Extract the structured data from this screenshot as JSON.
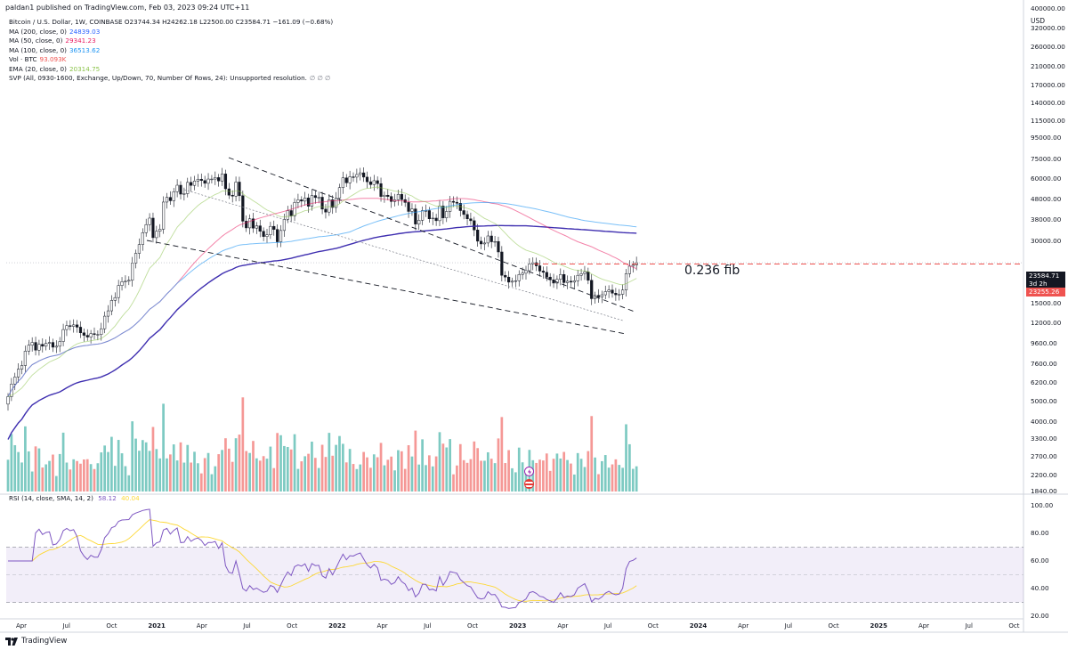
{
  "header": {
    "publish_line": "paldan1 published on TradingView.com, Feb 03, 2023 09:24 UTC+11"
  },
  "legend": {
    "title": "Bitcoin / U.S. Dollar, 1W, COINBASE",
    "ohlc": "O23744.34  H24262.18  L22500.00  C23584.71  −161.09 (−0.68%)",
    "indicators": [
      {
        "label": "MA (200, close, 0)",
        "value": "24839.03",
        "color": "#2962ff"
      },
      {
        "label": "MA (50, close, 0)",
        "value": "29341.23",
        "color": "#e91e63"
      },
      {
        "label": "MA (100, close, 0)",
        "value": "36513.62",
        "color": "#2196f3"
      },
      {
        "label": "Vol · BTC",
        "value": "93.093K",
        "color": "#ef5350"
      },
      {
        "label": "EMA (20, close, 0)",
        "value": "20314.75",
        "color": "#8bc34a"
      },
      {
        "label": "SVP (All, 0930-1600, Exchange, Up/Down, 70, Number Of Rows, 24): Unsupported resolution.",
        "value": "∅  ∅  ∅",
        "color": "#787b86"
      }
    ]
  },
  "rsi_legend": {
    "label": "RSI (14, close, SMA, 14, 2)",
    "value": "58.12",
    "value2": "40.04",
    "color": "#7e57c2",
    "color2": "#fdd835"
  },
  "price_axis": {
    "currency": "USD",
    "labels": [
      "400000.00",
      "320000.00",
      "260000.00",
      "210000.00",
      "170000.00",
      "140000.00",
      "115000.00",
      "95000.00",
      "75000.00",
      "60000.00",
      "48000.00",
      "38000.00",
      "30000.00",
      "19000.00",
      "15000.00",
      "12000.00",
      "9600.00",
      "7600.00",
      "6200.00",
      "5000.00",
      "4000.00",
      "3300.00",
      "2700.00",
      "2200.00",
      "1840.00"
    ],
    "current_price": "23584.71",
    "countdown": "3d 2h",
    "fib_price": "23255.26"
  },
  "rsi_axis": {
    "labels": [
      "100.00",
      "80.00",
      "60.00",
      "40.00",
      "20.00"
    ]
  },
  "time_axis": {
    "labels": [
      "Apr",
      "Jul",
      "Oct",
      "2021",
      "Apr",
      "Jul",
      "Oct",
      "2022",
      "Apr",
      "Jul",
      "Oct",
      "2023",
      "Apr",
      "Jul",
      "Oct",
      "2024",
      "Apr",
      "Jul",
      "Oct",
      "2025",
      "Apr",
      "Jul",
      "Oct"
    ]
  },
  "annotation": {
    "fib_label": "0.236 fib"
  },
  "branding": {
    "name": "TradingView"
  },
  "chart_data": {
    "type": "candlestick",
    "symbol": "Bitcoin / U.S. Dollar",
    "interval": "1W",
    "exchange": "COINBASE",
    "yscale": "log",
    "ylim": [
      1840,
      400000
    ],
    "x_start": "2020-03",
    "weekly_close": [
      5300,
      6100,
      6600,
      7200,
      7500,
      8800,
      9400,
      9700,
      8900,
      9500,
      9300,
      9600,
      9700,
      9200,
      9300,
      9800,
      11200,
      11700,
      11600,
      11800,
      11500,
      10800,
      10500,
      10300,
      10700,
      10600,
      10600,
      11300,
      13000,
      13800,
      15500,
      16000,
      18300,
      19100,
      19200,
      19400,
      23500,
      26200,
      28900,
      33000,
      36100,
      38800,
      31200,
      33500,
      34300,
      46400,
      48900,
      47100,
      52100,
      56000,
      50700,
      51000,
      57800,
      55900,
      58700,
      59900,
      59000,
      57200,
      60000,
      60000,
      61000,
      58700,
      63500,
      53800,
      50100,
      49600,
      58000,
      49800,
      37500,
      34800,
      38500,
      34700,
      35600,
      33500,
      31600,
      32200,
      35400,
      34200,
      29800,
      33800,
      38300,
      42200,
      39800,
      46200,
      47600,
      46900,
      48600,
      44300,
      49900,
      48800,
      49000,
      42900,
      41500,
      47600,
      43700,
      48500,
      54500,
      60800,
      57500,
      61500,
      61300,
      63100,
      64300,
      61300,
      58200,
      56400,
      58900,
      57000,
      49400,
      50100,
      49400,
      46700,
      47600,
      50600,
      47700,
      46200,
      41800,
      43000,
      36300,
      37900,
      42200,
      42200,
      38500,
      38800,
      37700,
      44400,
      38900,
      41800,
      46800,
      46300,
      45800,
      42200,
      40400,
      38500,
      37700,
      34000,
      30000,
      29100,
      29400,
      31800,
      29800,
      29900,
      26600,
      20500,
      20100,
      19000,
      19200,
      19300,
      20700,
      21000,
      21600,
      23300,
      23600,
      22800,
      21500,
      21200,
      20100,
      19500,
      18800,
      19600,
      20700,
      18900,
      19200,
      19000,
      19300,
      20500,
      20900,
      21300,
      19400,
      15800,
      16400,
      16100,
      16500,
      17100,
      17400,
      16800,
      16500,
      16600,
      17400,
      20900,
      22700,
      23000,
      23600
    ],
    "ma_200_last": 24839.03,
    "ma_50_last": 29341.23,
    "ma_100_last": 36513.62,
    "ema_20_last": 20314.75,
    "volume_last": "93.093K",
    "rsi_last": 58.12,
    "rsi_ma_last": 40.04,
    "rsi_ylim": [
      20,
      100
    ],
    "rsi_band": [
      30,
      70
    ],
    "fib_level": {
      "name": "0.236 fib",
      "price": 23255.26
    }
  }
}
